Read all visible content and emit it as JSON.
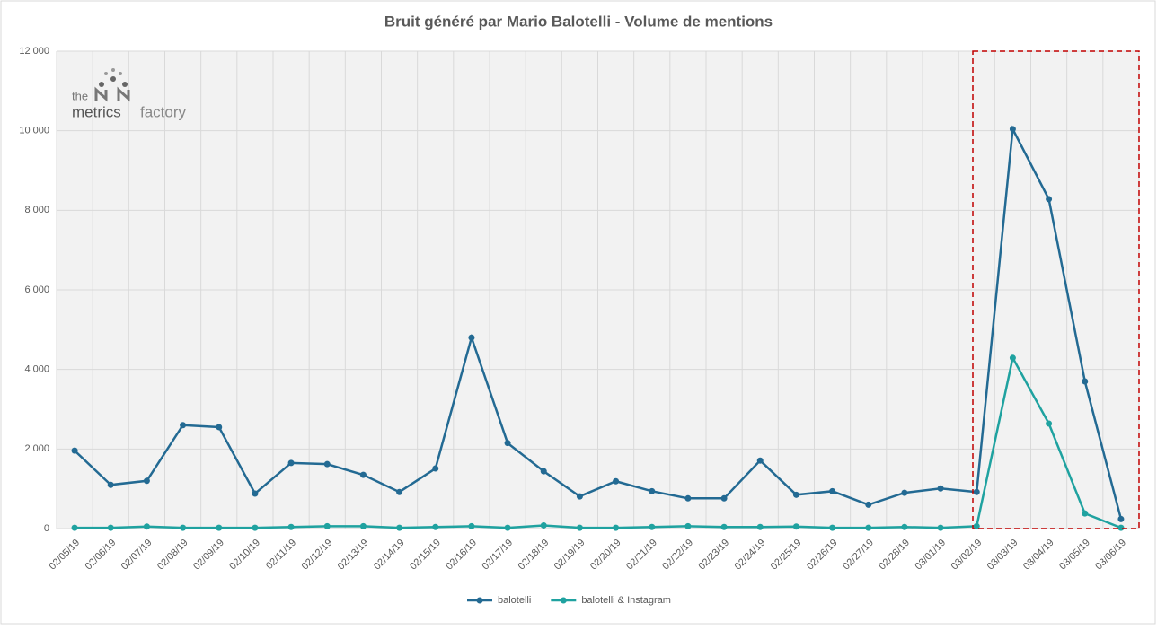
{
  "chart_data": {
    "type": "line",
    "title": "Bruit généré par Mario Balotelli - Volume de mentions",
    "categories": [
      "02/05/19",
      "02/06/19",
      "02/07/19",
      "02/08/19",
      "02/09/19",
      "02/10/19",
      "02/11/19",
      "02/12/19",
      "02/13/19",
      "02/14/19",
      "02/15/19",
      "02/16/19",
      "02/17/19",
      "02/18/19",
      "02/19/19",
      "02/20/19",
      "02/21/19",
      "02/22/19",
      "02/23/19",
      "02/24/19",
      "02/25/19",
      "02/26/19",
      "02/27/19",
      "02/28/19",
      "03/01/19",
      "03/02/19",
      "03/03/19",
      "03/04/19",
      "03/05/19",
      "03/06/19"
    ],
    "series": [
      {
        "name": "balotelli",
        "color": "#236a93",
        "values": [
          1960,
          1100,
          1200,
          2600,
          2550,
          880,
          1650,
          1620,
          1350,
          920,
          1510,
          4800,
          2150,
          1440,
          810,
          1190,
          940,
          760,
          760,
          1710,
          850,
          940,
          600,
          900,
          1010,
          920,
          10040,
          8280,
          3700,
          240
        ]
      },
      {
        "name": "balotelli & Instagram",
        "color": "#1fa2a0",
        "values": [
          20,
          20,
          50,
          20,
          20,
          20,
          40,
          60,
          60,
          20,
          40,
          60,
          20,
          80,
          20,
          20,
          40,
          60,
          40,
          40,
          50,
          20,
          20,
          40,
          20,
          60,
          4290,
          2640,
          380,
          20
        ]
      }
    ],
    "ylim": [
      0,
      12000
    ],
    "yticks": [
      0,
      {
        "value": 2000,
        "label": "2 000"
      },
      {
        "value": 4000,
        "label": "4 000"
      },
      {
        "value": 6000,
        "label": "6 000"
      },
      {
        "value": 8000,
        "label": "8 000"
      },
      {
        "value": 10000,
        "label": "10 000"
      },
      {
        "value": 12000,
        "label": "12 000"
      }
    ],
    "grid": true,
    "legend": "bottom"
  },
  "logo": {
    "prefix": "the",
    "word1": "metrics",
    "word2": "factory"
  }
}
